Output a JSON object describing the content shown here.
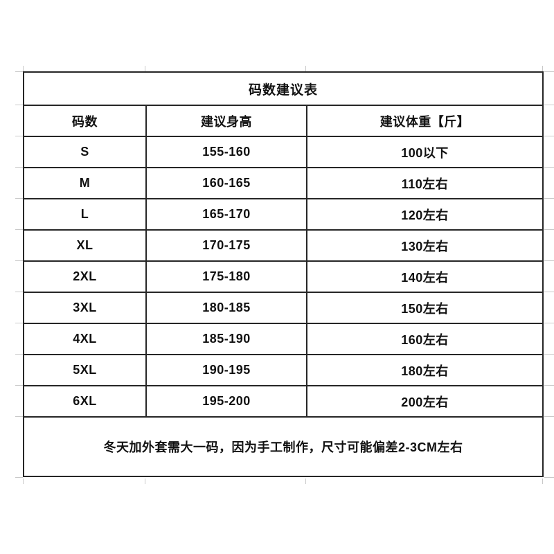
{
  "chart_data": {
    "type": "table",
    "title": "码数建议表",
    "columns": [
      "码数",
      "建议身高",
      "建议体重【斤】"
    ],
    "rows": [
      {
        "size": "S",
        "height": "155-160",
        "weight": "100以下"
      },
      {
        "size": "M",
        "height": "160-165",
        "weight": "110左右"
      },
      {
        "size": "L",
        "height": "165-170",
        "weight": "120左右"
      },
      {
        "size": "XL",
        "height": "170-175",
        "weight": "130左右"
      },
      {
        "size": "2XL",
        "height": "175-180",
        "weight": "140左右"
      },
      {
        "size": "3XL",
        "height": "180-185",
        "weight": "150左右"
      },
      {
        "size": "4XL",
        "height": "185-190",
        "weight": "160左右"
      },
      {
        "size": "5XL",
        "height": "190-195",
        "weight": "180左右"
      },
      {
        "size": "6XL",
        "height": "195-200",
        "weight": "200左右"
      }
    ],
    "note": "冬天加外套需大一码，因为手工制作，尺寸可能偏差2-3CM左右"
  },
  "colors": {
    "border": "#262626",
    "text": "#111111",
    "background": "#ffffff"
  }
}
